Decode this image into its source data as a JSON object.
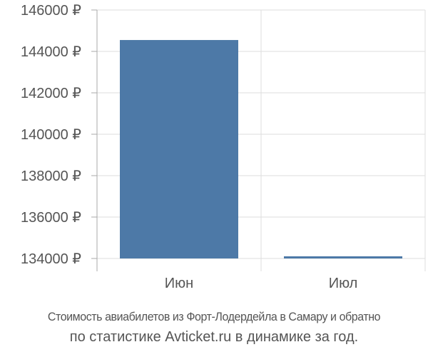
{
  "chart_data": {
    "type": "bar",
    "categories": [
      "Июн",
      "Июл"
    ],
    "values": [
      144550,
      134100
    ],
    "ylim": [
      134000,
      146000
    ],
    "yticks": [
      134000,
      136000,
      138000,
      140000,
      142000,
      144000,
      146000
    ],
    "tick_suffix": " ₽",
    "grid": true,
    "bar_color": "#4d79a7",
    "grid_color": "#dddddd",
    "axis_color": "#aaaaaa",
    "title": ""
  },
  "caption": {
    "line1": "Стоимость авиабилетов из Форт-Лодердейла в Самару и обратно",
    "line2": "по статистике Avticket.ru в динамике за год."
  }
}
